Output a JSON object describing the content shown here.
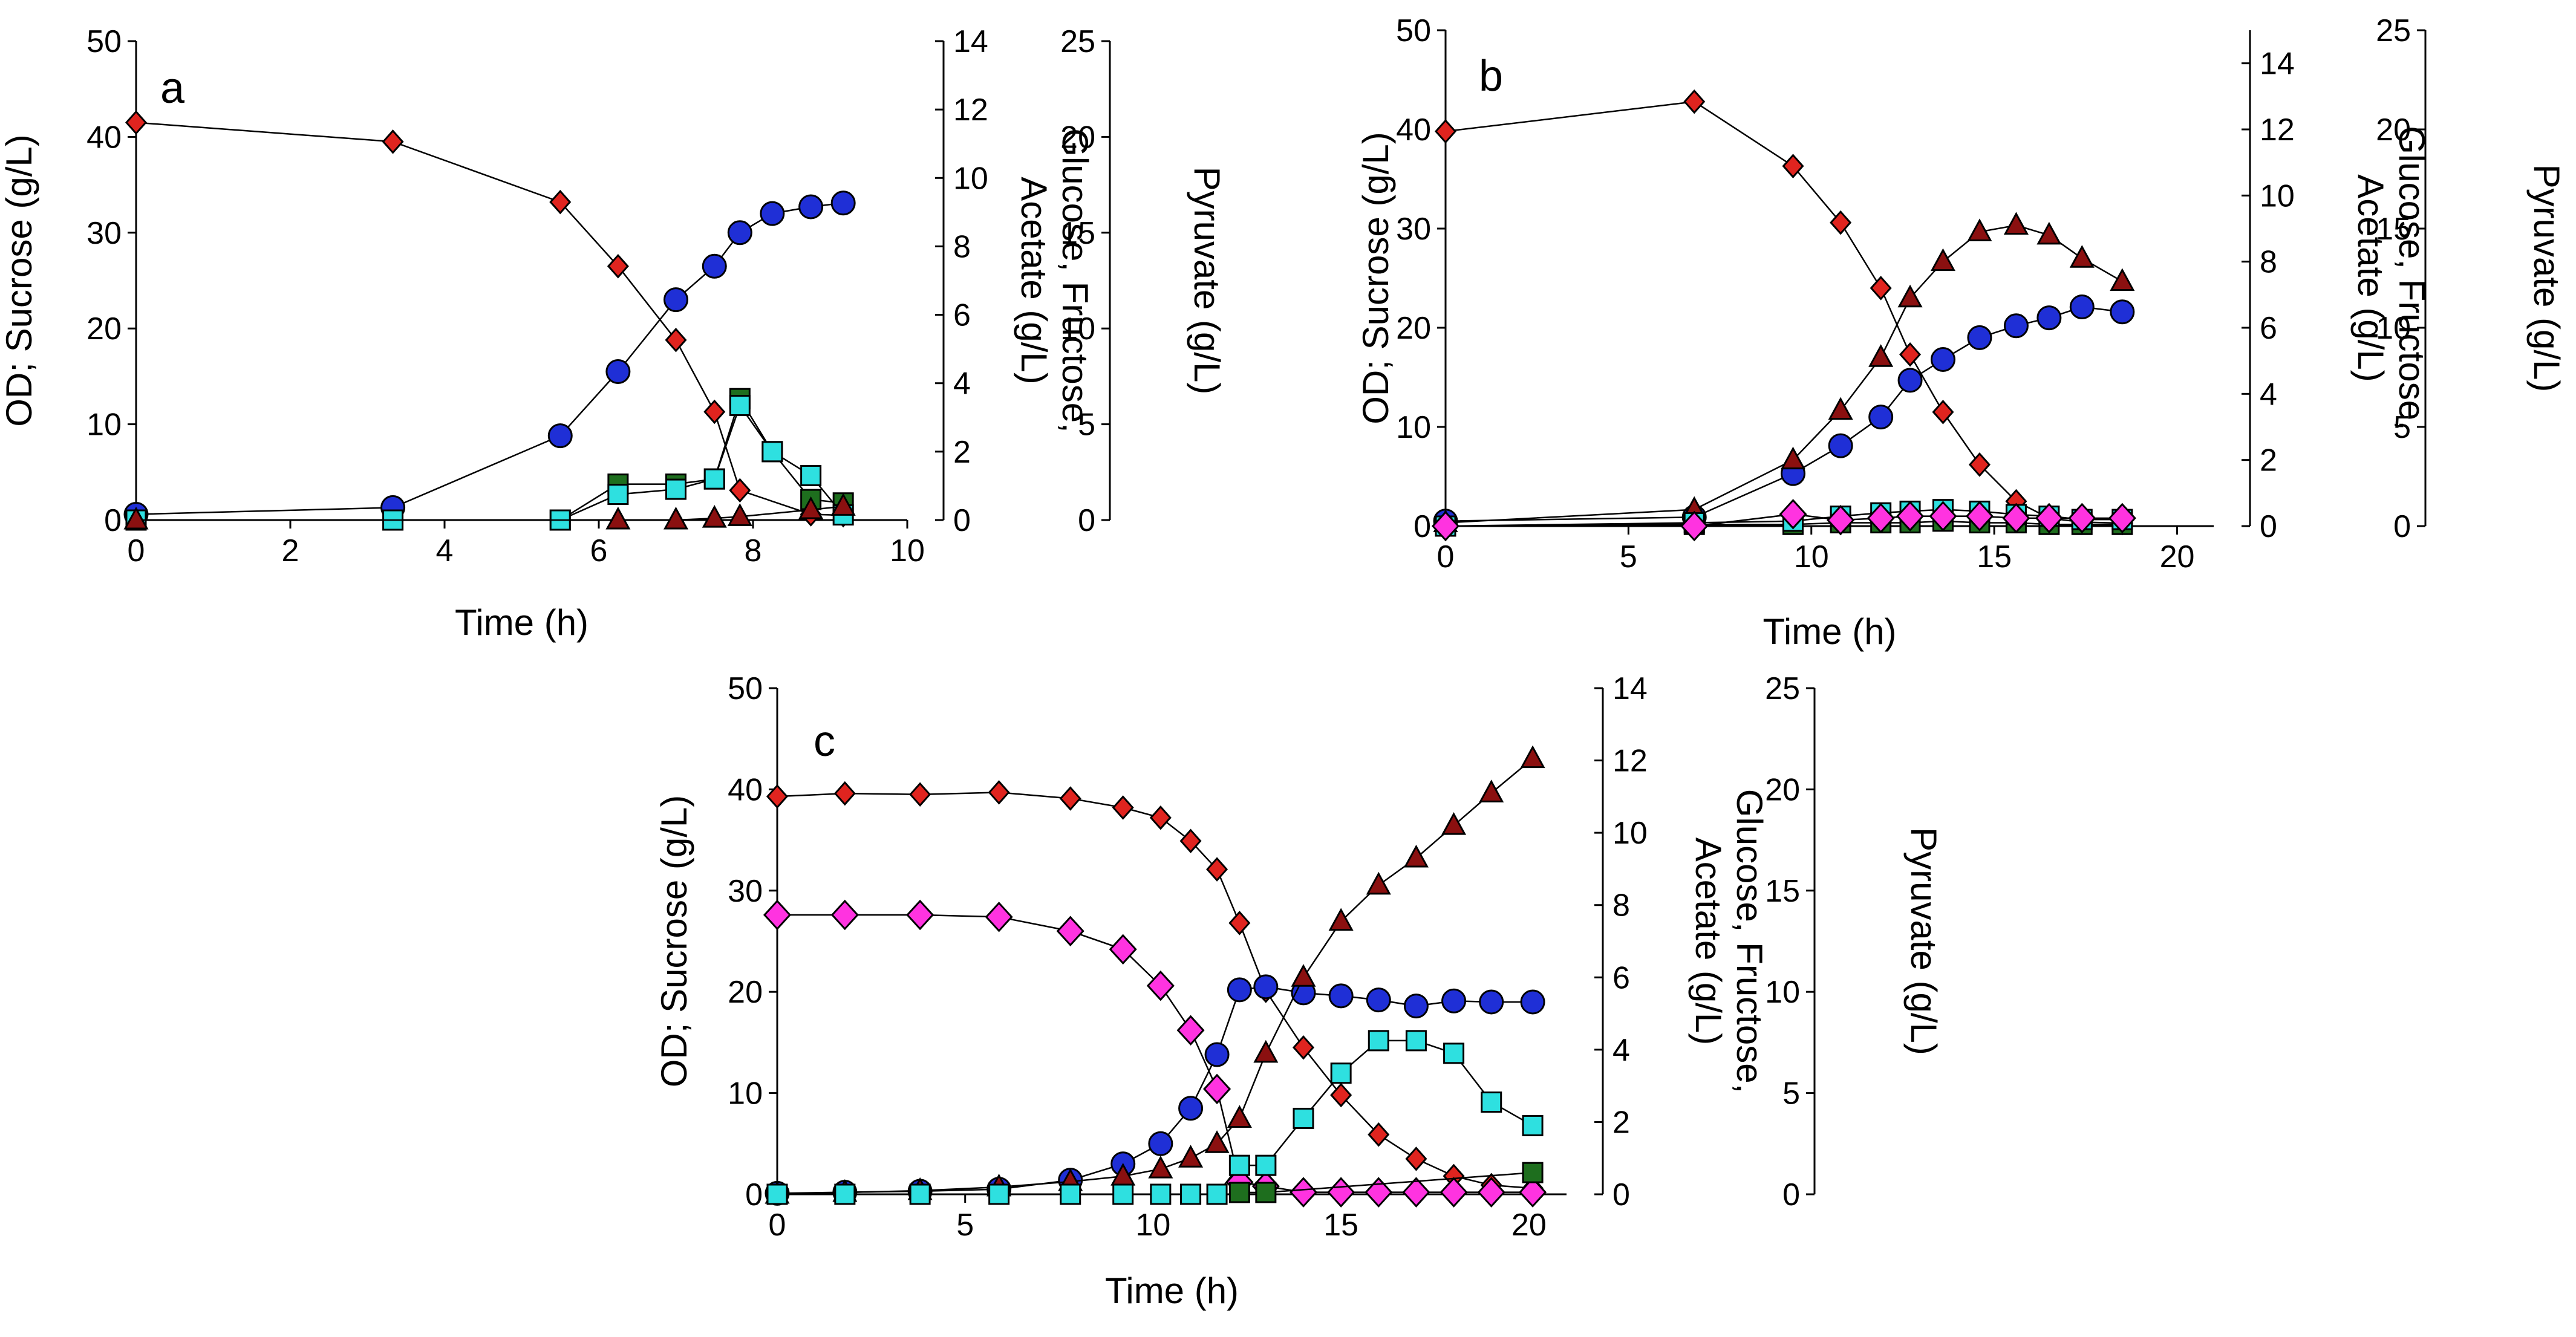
{
  "chart_data": [
    {
      "type": "line",
      "panel_label": "a",
      "xlabel": "Time (h)",
      "ylabel_left": "OD; Sucrose (g/L)",
      "ylabel_right1": [
        "Glucose, Fructose,",
        "Acetate (g/L)"
      ],
      "ylabel_right2": "Pyruvate (g/L)",
      "xlim": [
        0,
        10
      ],
      "xticks": [
        "0",
        "2",
        "4",
        "6",
        "8",
        "10"
      ],
      "ylim_left": [
        0,
        50
      ],
      "yticks_left": [
        "0",
        "10",
        "20",
        "30",
        "40",
        "50"
      ],
      "ylim_right1": [
        0,
        14
      ],
      "yticks_right1": [
        "0",
        "2",
        "4",
        "6",
        "8",
        "10",
        "12",
        "14"
      ],
      "ylim_right2": [
        0,
        25
      ],
      "yticks_right2": [
        "0",
        "5",
        "10",
        "15",
        "20",
        "25"
      ],
      "series": [
        {
          "name": "OD",
          "axis": "left",
          "marker": "circle",
          "color": "#1f2fd6",
          "x": [
            0,
            3.33,
            5.5,
            6.25,
            7.0,
            7.5,
            7.83,
            8.25,
            8.75,
            9.17
          ],
          "y": [
            0.6,
            1.3,
            8.8,
            15.5,
            23.0,
            26.5,
            30.0,
            32.0,
            32.7,
            33.1
          ]
        },
        {
          "name": "Sucrose",
          "axis": "left",
          "marker": "diamond-small",
          "color": "#e0241f",
          "x": [
            0,
            3.33,
            5.5,
            6.25,
            7.0,
            7.5,
            7.83,
            8.75,
            9.17
          ],
          "y": [
            41.5,
            39.5,
            33.2,
            26.5,
            18.8,
            11.3,
            3.1,
            0.6,
            0.5
          ]
        },
        {
          "name": "Glucose",
          "axis": "right1",
          "marker": "square",
          "color": "#1e6e1e",
          "x": [
            0,
            5.5,
            6.25,
            7.0,
            7.5,
            7.83,
            8.25,
            8.75,
            9.17
          ],
          "y": [
            0,
            0,
            1.05,
            1.05,
            1.2,
            3.55,
            2.0,
            0.6,
            0.5
          ]
        },
        {
          "name": "Fructose",
          "axis": "right1",
          "marker": "square",
          "color": "#2ee0e0",
          "x": [
            0,
            3.33,
            5.5,
            6.25,
            7.0,
            7.5,
            7.83,
            8.25,
            8.75,
            9.17
          ],
          "y": [
            0,
            0,
            0,
            0.75,
            0.9,
            1.2,
            3.35,
            2.0,
            1.3,
            0.15
          ]
        },
        {
          "name": "Acetate",
          "axis": "right1",
          "marker": "triangle",
          "color": "#8b1010",
          "x": [
            0,
            6.25,
            7.0,
            7.5,
            7.83,
            8.75,
            9.17
          ],
          "y": [
            0,
            0,
            0,
            0.05,
            0.1,
            0.3,
            0.4
          ]
        }
      ]
    },
    {
      "type": "line",
      "panel_label": "b",
      "xlabel": "Time (h)",
      "ylabel_left": "OD; Sucrose (g/L)",
      "ylabel_right1": [
        "Glucose, Fructose,",
        "Acetate (g/L)"
      ],
      "ylabel_right2": "Pyruvate (g/L)",
      "xlim": [
        0,
        21
      ],
      "xticks": [
        "0",
        "5",
        "10",
        "15",
        "20"
      ],
      "ylim_left": [
        0,
        50
      ],
      "yticks_left": [
        "0",
        "10",
        "20",
        "30",
        "40",
        "50"
      ],
      "ylim_right1": [
        0,
        15
      ],
      "yticks_right1": [
        "0",
        "2",
        "4",
        "6",
        "8",
        "10",
        "12",
        "14"
      ],
      "ylim_right2": [
        0,
        25
      ],
      "yticks_right2": [
        "0",
        "5",
        "10",
        "15",
        "20",
        "25"
      ],
      "series": [
        {
          "name": "Sucrose",
          "axis": "left",
          "marker": "diamond-small",
          "color": "#e0241f",
          "x": [
            0,
            6.8,
            9.5,
            10.8,
            11.9,
            12.7,
            13.6,
            14.6,
            15.6,
            16.5,
            17.4,
            18.5
          ],
          "y": [
            39.8,
            42.8,
            36.3,
            30.6,
            24.0,
            17.3,
            11.5,
            6.2,
            2.5,
            0.8,
            0.4,
            0.3
          ]
        },
        {
          "name": "OD",
          "axis": "left",
          "marker": "circle",
          "color": "#1f2fd6",
          "x": [
            0,
            6.8,
            9.5,
            10.8,
            11.9,
            12.7,
            13.6,
            14.6,
            15.6,
            16.5,
            17.4,
            18.5
          ],
          "y": [
            0.5,
            0.9,
            5.3,
            8.1,
            11.0,
            14.7,
            16.8,
            19.0,
            20.2,
            21.0,
            22.1,
            21.6
          ]
        },
        {
          "name": "Acetate",
          "axis": "right1",
          "marker": "triangle",
          "color": "#8b1010",
          "x": [
            0,
            6.8,
            9.5,
            10.8,
            11.9,
            12.7,
            13.6,
            14.6,
            15.6,
            16.5,
            17.4,
            18.5
          ],
          "y": [
            0.1,
            0.5,
            2.0,
            3.5,
            5.1,
            6.9,
            8.0,
            8.9,
            9.1,
            8.8,
            8.1,
            7.4
          ]
        },
        {
          "name": "Glucose",
          "axis": "right1",
          "marker": "square",
          "color": "#1e6e1e",
          "x": [
            0,
            6.8,
            9.5,
            10.8,
            11.9,
            12.7,
            13.6,
            14.6,
            15.6,
            16.5,
            17.4,
            18.5
          ],
          "y": [
            0,
            0.05,
            0.05,
            0.1,
            0.1,
            0.1,
            0.15,
            0.1,
            0.1,
            0.05,
            0.05,
            0.05
          ]
        },
        {
          "name": "Fructose",
          "axis": "right1",
          "marker": "square",
          "color": "#2ee0e0",
          "x": [
            0,
            6.8,
            9.5,
            10.8,
            11.9,
            12.7,
            13.6,
            14.6,
            15.6,
            16.5,
            17.4,
            18.5
          ],
          "y": [
            0,
            0.1,
            0.15,
            0.3,
            0.4,
            0.45,
            0.5,
            0.45,
            0.35,
            0.3,
            0.2,
            0.2
          ]
        },
        {
          "name": "Pyruvate",
          "axis": "right2",
          "marker": "diamond",
          "color": "#ff33e0",
          "x": [
            0,
            6.8,
            9.5,
            10.8,
            11.9,
            12.7,
            13.6,
            14.6,
            15.6,
            16.5,
            17.4,
            18.5
          ],
          "y": [
            0,
            0,
            0.6,
            0.3,
            0.4,
            0.5,
            0.5,
            0.5,
            0.4,
            0.4,
            0.4,
            0.4
          ]
        }
      ]
    },
    {
      "type": "line",
      "panel_label": "c",
      "xlabel": "Time (h)",
      "ylabel_left": "OD; Sucrose (g/L)",
      "ylabel_right1": [
        "Glucose, Fructose,",
        "Acetate (g/L)"
      ],
      "ylabel_right2": "Pyruvate (g/L)",
      "xlim": [
        0,
        21
      ],
      "xticks": [
        "0",
        "5",
        "10",
        "15",
        "20"
      ],
      "ylim_left": [
        0,
        50
      ],
      "yticks_left": [
        "0",
        "10",
        "20",
        "30",
        "40",
        "50"
      ],
      "ylim_right1": [
        0,
        14
      ],
      "yticks_right1": [
        "0",
        "2",
        "4",
        "6",
        "8",
        "10",
        "12",
        "14"
      ],
      "ylim_right2": [
        0,
        25
      ],
      "yticks_right2": [
        "0",
        "5",
        "10",
        "15",
        "20",
        "25"
      ],
      "series": [
        {
          "name": "Sucrose",
          "axis": "left",
          "marker": "diamond-small",
          "color": "#e0241f",
          "x": [
            0,
            1.8,
            3.8,
            5.9,
            7.8,
            9.2,
            10.2,
            11.0,
            11.7,
            12.3,
            13.0,
            14.0,
            15.0,
            16.0,
            17.0,
            18.0,
            19.0,
            20.1
          ],
          "y": [
            39.3,
            39.6,
            39.5,
            39.7,
            39.1,
            38.2,
            37.2,
            34.9,
            32.1,
            26.8,
            20.1,
            14.5,
            9.8,
            5.9,
            3.5,
            1.8,
            0.9,
            0.6
          ]
        },
        {
          "name": "Pyruvate",
          "axis": "right2",
          "marker": "diamond",
          "color": "#ff33e0",
          "x": [
            0,
            1.8,
            3.8,
            5.9,
            7.8,
            9.2,
            10.2,
            11.0,
            11.7,
            12.3,
            13.0,
            14.0,
            15.0,
            16.0,
            17.0,
            18.0,
            19.0,
            20.1
          ],
          "y": [
            13.8,
            13.8,
            13.8,
            13.7,
            13.0,
            12.1,
            10.3,
            8.1,
            5.2,
            0.6,
            0.4,
            0.1,
            0.1,
            0.1,
            0.1,
            0.1,
            0.1,
            0.1
          ]
        },
        {
          "name": "OD",
          "axis": "left",
          "marker": "circle",
          "color": "#1f2fd6",
          "x": [
            0,
            1.8,
            3.8,
            5.9,
            7.8,
            9.2,
            10.2,
            11.0,
            11.7,
            12.3,
            13.0,
            14.0,
            15.0,
            16.0,
            17.0,
            18.0,
            19.0,
            20.1
          ],
          "y": [
            0.1,
            0.2,
            0.3,
            0.5,
            1.4,
            3.0,
            5.0,
            8.5,
            13.8,
            20.2,
            20.5,
            19.9,
            19.6,
            19.2,
            18.6,
            19.1,
            19.0,
            19.0
          ]
        },
        {
          "name": "Acetate",
          "axis": "right1",
          "marker": "triangle",
          "color": "#8b1010",
          "x": [
            0,
            1.8,
            3.8,
            5.9,
            7.8,
            9.2,
            10.2,
            11.0,
            11.7,
            12.3,
            13.0,
            14.0,
            15.0,
            16.0,
            17.0,
            18.0,
            19.0,
            20.1
          ],
          "y": [
            0,
            0.05,
            0.1,
            0.2,
            0.35,
            0.5,
            0.7,
            1.0,
            1.4,
            2.1,
            3.9,
            6.0,
            7.55,
            8.55,
            9.3,
            10.2,
            11.1,
            12.05
          ]
        },
        {
          "name": "Fructose",
          "axis": "right1",
          "marker": "square",
          "color": "#2ee0e0",
          "x": [
            0,
            1.8,
            3.8,
            5.9,
            7.8,
            9.2,
            10.2,
            11.0,
            11.7,
            12.3,
            13.0,
            14.0,
            15.0,
            16.0,
            17.0,
            18.0,
            19.0,
            20.1
          ],
          "y": [
            0,
            0,
            0,
            0,
            0,
            0,
            0,
            0,
            0,
            0.8,
            0.8,
            2.1,
            3.35,
            4.25,
            4.25,
            3.9,
            2.55,
            1.9
          ]
        },
        {
          "name": "Glucose",
          "axis": "right1",
          "marker": "square",
          "color": "#1e6e1e",
          "x": [
            12.3,
            13.0,
            20.1
          ],
          "y": [
            0.05,
            0.05,
            0.6
          ]
        }
      ]
    }
  ]
}
